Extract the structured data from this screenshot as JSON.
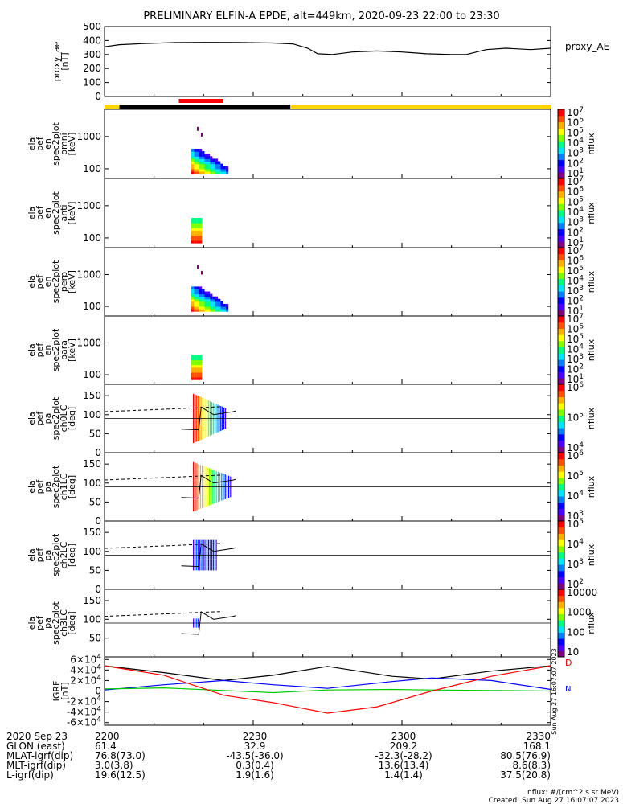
{
  "title": "PRELIMINARY ELFIN-A EPDE, alt=449km, 2020-09-23 22:00 to 23:30",
  "chart_data": {
    "type": "line",
    "time_range": [
      "2020-09-23 22:00",
      "2020-09-23 23:30"
    ],
    "x_ticks": [
      "2200",
      "2230",
      "2300",
      "2330"
    ],
    "panels": [
      {
        "id": "proxy_ae",
        "type": "line",
        "ylabel": [
          "proxy_ae",
          "[nT]"
        ],
        "ylim": [
          0,
          500
        ],
        "yticks": [
          "0",
          "100",
          "200",
          "300",
          "400",
          "500"
        ],
        "series": [
          {
            "name": "proxy_AE",
            "color": "#000000",
            "points": [
              [
                0,
                355
              ],
              [
                3,
                370
              ],
              [
                8,
                378
              ],
              [
                14,
                385
              ],
              [
                20,
                387
              ],
              [
                27,
                386
              ],
              [
                34,
                382
              ],
              [
                38,
                376
              ],
              [
                41,
                345
              ],
              [
                43,
                305
              ],
              [
                46,
                300
              ],
              [
                50,
                318
              ],
              [
                55,
                325
              ],
              [
                60,
                318
              ],
              [
                65,
                305
              ],
              [
                70,
                300
              ],
              [
                73,
                300
              ],
              [
                77,
                335
              ],
              [
                81,
                345
              ],
              [
                86,
                335
              ],
              [
                90,
                345
              ]
            ]
          }
        ]
      },
      {
        "id": "omni",
        "type": "heatmap",
        "ylabel": [
          "ela",
          "pef",
          "en",
          "spec2plot",
          "omni",
          "[keV]"
        ],
        "ylim": [
          50,
          7000
        ],
        "yscale": "log",
        "yticks": [
          "100",
          "1000"
        ],
        "cbar_ticks": [
          "10^1",
          "10^2",
          "10^3",
          "10^4",
          "10^5",
          "10^6",
          "10^7"
        ],
        "cbar_label": "nflux",
        "variant": "full"
      },
      {
        "id": "anti",
        "type": "heatmap",
        "ylabel": [
          "ela",
          "pef",
          "en",
          "spec2plot",
          "anti",
          "[keV]"
        ],
        "ylim": [
          50,
          7000
        ],
        "yscale": "log",
        "yticks": [
          "100",
          "1000"
        ],
        "cbar_ticks": [
          "10^1",
          "10^2",
          "10^3",
          "10^4",
          "10^5",
          "10^6",
          "10^7"
        ],
        "cbar_label": "nflux",
        "variant": "narrow"
      },
      {
        "id": "perp",
        "type": "heatmap",
        "ylabel": [
          "ela",
          "pef",
          "en",
          "spec2plot",
          "perp",
          "[keV]"
        ],
        "ylim": [
          50,
          7000
        ],
        "yscale": "log",
        "yticks": [
          "100",
          "1000"
        ],
        "cbar_ticks": [
          "10^1",
          "10^2",
          "10^3",
          "10^4",
          "10^5",
          "10^6",
          "10^7"
        ],
        "cbar_label": "nflux",
        "variant": "full"
      },
      {
        "id": "para",
        "type": "heatmap",
        "ylabel": [
          "ela",
          "pef",
          "en",
          "spec2plot",
          "para",
          "[keV]"
        ],
        "ylim": [
          50,
          7000
        ],
        "yscale": "log",
        "yticks": [
          "100",
          "1000"
        ],
        "cbar_ticks": [
          "10^1",
          "10^2",
          "10^3",
          "10^4",
          "10^5",
          "10^6",
          "10^7"
        ],
        "cbar_label": "nflux",
        "variant": "narrow"
      },
      {
        "id": "ch0LC",
        "type": "heatmap",
        "ylabel": [
          "ela",
          "pef",
          "pa",
          "spec2plot",
          "ch0LC",
          "[deg]"
        ],
        "ylim": [
          0,
          180
        ],
        "yticks": [
          "0",
          "50",
          "100",
          "150"
        ],
        "cbar_ticks": [
          "10^4",
          "10^5",
          "10^6"
        ],
        "cbar_label": "nflux"
      },
      {
        "id": "ch1LC",
        "type": "heatmap",
        "ylabel": [
          "ela",
          "pef",
          "pa",
          "spec2plot",
          "ch1LC",
          "[deg]"
        ],
        "ylim": [
          0,
          180
        ],
        "yticks": [
          "0",
          "50",
          "100",
          "150"
        ],
        "cbar_ticks": [
          "10^3",
          "10^4",
          "10^5",
          "10^6"
        ],
        "cbar_label": "nflux"
      },
      {
        "id": "ch2LC",
        "type": "heatmap",
        "ylabel": [
          "ela",
          "pef",
          "pa",
          "spec2plot",
          "ch2LC",
          "[deg]"
        ],
        "ylim": [
          0,
          180
        ],
        "yticks": [
          "0",
          "50",
          "100",
          "150"
        ],
        "cbar_ticks": [
          "10^2",
          "10^3",
          "10^4",
          "10^5"
        ],
        "cbar_label": "nflux"
      },
      {
        "id": "ch3LC",
        "type": "heatmap",
        "ylabel": [
          "ela",
          "pef",
          "pa",
          "spec2plot",
          "ch3LC",
          "[deg]"
        ],
        "ylim": [
          0,
          180
        ],
        "yticks": [
          "50",
          "100",
          "150"
        ],
        "cbar_ticks": [
          "10",
          "100",
          "1000",
          "10000"
        ],
        "cbar_label": "nflux"
      },
      {
        "id": "igrf",
        "type": "line",
        "ylabel": [
          "IGRF",
          "[nT]"
        ],
        "ylim": [
          -65000,
          65000
        ],
        "yticks": [
          "-6×10^4",
          "-4×10^4",
          "-2×10^4",
          "0",
          "2×10^4",
          "4×10^4",
          "6×10^4"
        ],
        "legend": [
          "D",
          "N"
        ],
        "series": [
          {
            "name": "black",
            "color": "#000000",
            "points": [
              [
                0,
                48000
              ],
              [
                12,
                35000
              ],
              [
                24,
                20000
              ],
              [
                34,
                30000
              ],
              [
                45,
                47000
              ],
              [
                58,
                28000
              ],
              [
                66,
                23000
              ],
              [
                78,
                38000
              ],
              [
                90,
                48000
              ]
            ]
          },
          {
            "name": "blue",
            "color": "#0000ff",
            "points": [
              [
                0,
                2000
              ],
              [
                12,
                12000
              ],
              [
                24,
                20000
              ],
              [
                34,
                12000
              ],
              [
                45,
                5000
              ],
              [
                58,
                18000
              ],
              [
                66,
                25000
              ],
              [
                78,
                20000
              ],
              [
                90,
                3000
              ]
            ]
          },
          {
            "name": "green",
            "color": "#00cc00",
            "points": [
              [
                0,
                4000
              ],
              [
                12,
                6000
              ],
              [
                24,
                1000
              ],
              [
                34,
                -3000
              ],
              [
                45,
                2000
              ],
              [
                58,
                3000
              ],
              [
                66,
                2000
              ],
              [
                78,
                1000
              ],
              [
                90,
                0
              ]
            ]
          },
          {
            "name": "red",
            "color": "#ff0000",
            "points": [
              [
                0,
                48000
              ],
              [
                12,
                30000
              ],
              [
                24,
                -8000
              ],
              [
                34,
                -22000
              ],
              [
                45,
                -42000
              ],
              [
                55,
                -30000
              ],
              [
                66,
                0
              ],
              [
                78,
                28000
              ],
              [
                90,
                48000
              ]
            ]
          }
        ]
      }
    ],
    "status_bar": [
      {
        "from": 0,
        "to": 3,
        "color": "#ffd700"
      },
      {
        "from": 3,
        "to": 37.5,
        "color": "#000000"
      },
      {
        "from": 37.5,
        "to": 90,
        "color": "#ffd700"
      }
    ],
    "event_bar": {
      "from": 15,
      "to": 24,
      "color": "#ff0000"
    }
  },
  "axis_rows": [
    {
      "label": "2020 Sep 23",
      "values": [
        "2200",
        "2230",
        "2300",
        "2330"
      ]
    },
    {
      "label": "GLON (east)",
      "values": [
        "61.4",
        "32.9",
        "209.2",
        "168.1"
      ]
    },
    {
      "label": "MLAT-igrf(dip)",
      "values": [
        "76.8(73.0)",
        "-43.5(-36.0)",
        "-32.3(-28.2)",
        "80.5(76.9)"
      ]
    },
    {
      "label": "MLT-igrf(dip)",
      "values": [
        "3.0(3.8)",
        "0.3(0.4)",
        "13.6(13.4)",
        "8.6(8.3)"
      ]
    },
    {
      "label": "L-igrf(dip)",
      "values": [
        "19.6(12.5)",
        "1.9(1.6)",
        "1.4(1.4)",
        "37.5(20.8)"
      ]
    }
  ],
  "footer": {
    "units": "nflux: #/(cm^2 s sr MeV)",
    "created": "Created: Sun Aug 27 16:07:07 2023"
  },
  "side_stamp": "Sun Aug 27 16:07:07 2023"
}
